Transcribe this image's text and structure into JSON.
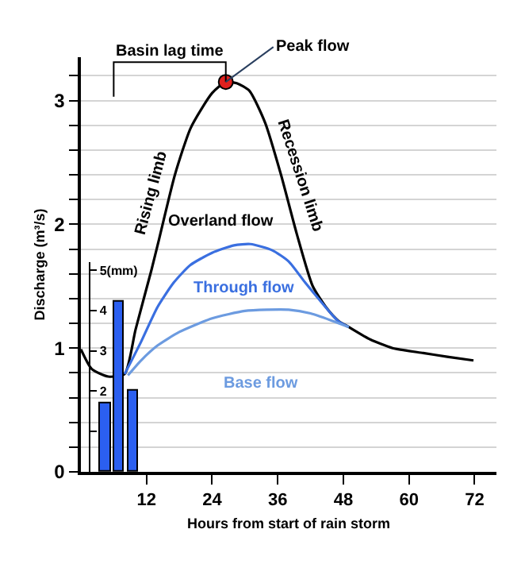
{
  "chart_data": {
    "type": "line",
    "xlabel": "Hours from start of rain storm",
    "ylabel": "Discharge (m³/s)",
    "xlim": [
      0,
      76
    ],
    "xticks": [
      12,
      24,
      36,
      48,
      60,
      72
    ],
    "ylim": [
      0,
      3.35
    ],
    "yticks": [
      0,
      {
        "value": 0.2,
        "label": null
      },
      {
        "value": 0.4,
        "label": null
      },
      {
        "value": 0.6,
        "label": null
      },
      {
        "value": 0.8,
        "label": null
      },
      1,
      {
        "value": 1.2,
        "label": null
      },
      {
        "value": 1.4,
        "label": null
      },
      {
        "value": 1.6,
        "label": null
      },
      {
        "value": 1.8,
        "label": null
      },
      2,
      {
        "value": 2.2,
        "label": null
      },
      {
        "value": 2.4,
        "label": null
      },
      {
        "value": 2.6,
        "label": null
      },
      {
        "value": 2.8,
        "label": null
      },
      3,
      {
        "value": 3.2,
        "label": null
      }
    ],
    "y2lim": [
      0,
      5.2
    ],
    "y2ticks": [
      {
        "value": 1,
        "label": null
      },
      2,
      3,
      4,
      {
        "value": 5,
        "label": "5(mm)"
      }
    ],
    "grid": "y",
    "marker": "none",
    "line_style": "solid",
    "series": [
      {
        "name": "Overland flow",
        "color": "#000000",
        "x": [
          0,
          2,
          5,
          8,
          10,
          12.9,
          14.3,
          17.2,
          20.1,
          24,
          26.5,
          28.5,
          30.8,
          33.7,
          36.6,
          39.5,
          42.4,
          45,
          47.1,
          49,
          52.9,
          57,
          62.6,
          67,
          71.8
        ],
        "values": [
          0.99,
          0.83,
          0.77,
          0.79,
          1.15,
          1.63,
          1.88,
          2.4,
          2.78,
          3.06,
          3.15,
          3.14,
          3.08,
          2.82,
          2.4,
          1.92,
          1.5,
          1.32,
          1.22,
          1.17,
          1.07,
          1.0,
          0.96,
          0.93,
          0.9
        ]
      },
      {
        "name": "Through flow",
        "color": "#3a6fe0",
        "x": [
          8,
          11,
          14,
          17,
          20,
          24,
          28,
          31,
          35,
          38,
          41,
          44,
          47,
          49
        ],
        "values": [
          0.79,
          1.05,
          1.33,
          1.53,
          1.67,
          1.77,
          1.83,
          1.84,
          1.79,
          1.7,
          1.53,
          1.37,
          1.22,
          1.17
        ]
      },
      {
        "name": "Base flow",
        "color": "#6c9be0",
        "x": [
          8.6,
          11,
          14,
          18,
          24,
          30,
          34,
          38,
          42,
          46,
          49
        ],
        "values": [
          0.78,
          0.9,
          1.02,
          1.13,
          1.24,
          1.3,
          1.31,
          1.31,
          1.28,
          1.22,
          1.17
        ]
      },
      {
        "type": "bar",
        "axis": "y2",
        "color": "#2b5ff0",
        "x": [
          4.5,
          7,
          9.5
        ],
        "values": [
          1.7,
          4.2,
          2.0
        ]
      },
      {
        "type": "scatter",
        "marker": "circle",
        "color": "#e0201e",
        "x": [
          26.5
        ],
        "values": [
          3.15
        ]
      }
    ],
    "annotations": [
      "Basin lag time",
      {
        "text": "Peak flow",
        "x": 26.5,
        "y": 3.15
      },
      {
        "text": "Rising limb",
        "x": 16.5,
        "y": 2.25
      },
      {
        "text": "Recession limb",
        "x": 36.6,
        "y": 2.4
      }
    ]
  }
}
